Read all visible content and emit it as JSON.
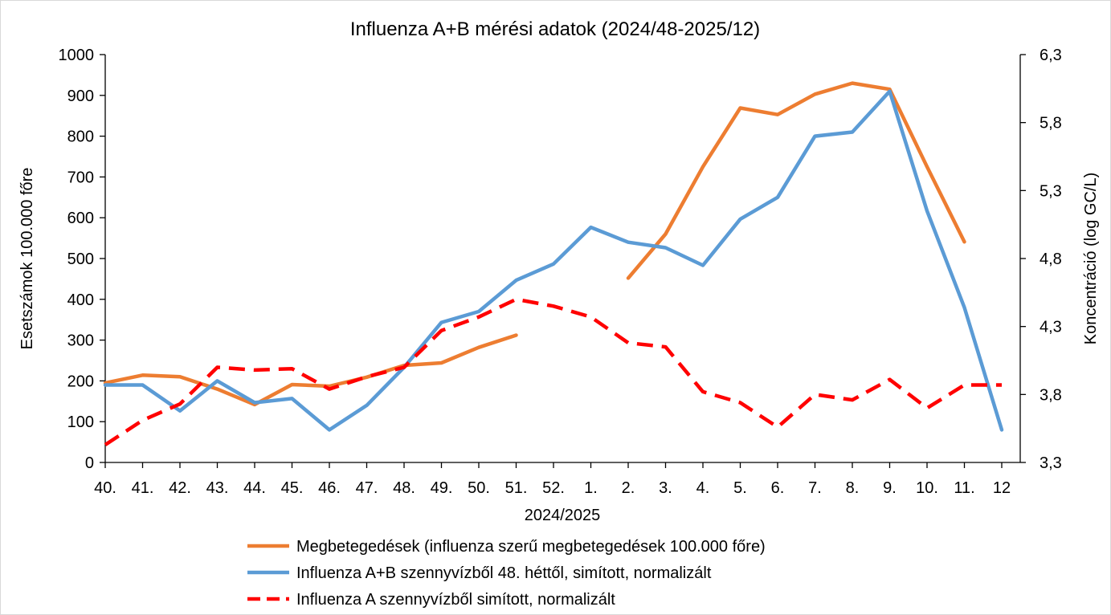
{
  "chart_data": {
    "type": "line",
    "title": "Influenza A+B mérési adatok (2024/48-2025/12)",
    "xlabel": "2024/2025",
    "ylabel": "Esetszámok 100.000 főre",
    "y2label": "Koncentráció (log GC/L)",
    "ylim": [
      0,
      1000
    ],
    "y2lim": [
      3.3,
      6.3
    ],
    "yticks": [
      "0",
      "100",
      "200",
      "300",
      "400",
      "500",
      "600",
      "700",
      "800",
      "900",
      "1000"
    ],
    "y2ticks": [
      "3,3",
      "3,8",
      "4,3",
      "4,8",
      "5,3",
      "5,8",
      "6,3"
    ],
    "categories": [
      "40.",
      "41.",
      "42.",
      "43.",
      "44.",
      "45.",
      "46.",
      "47.",
      "48.",
      "49.",
      "50.",
      "51.",
      "52.",
      "1.",
      "2.",
      "3.",
      "4.",
      "5.",
      "6.",
      "7.",
      "8.",
      "9.",
      "10.",
      "11.",
      "12"
    ],
    "grid": false,
    "legend_position": "bottom",
    "series": [
      {
        "name": "Megbetegedések (influenza szerű megbetegedések 100.000 főre)",
        "axis": "left",
        "color": "#ed7d31",
        "style": "solid",
        "values": [
          195,
          214,
          210,
          180,
          142,
          191,
          187,
          209,
          238,
          244,
          282,
          312,
          null,
          null,
          452,
          560,
          725,
          869,
          853,
          903,
          930,
          915,
          725,
          541,
          null
        ]
      },
      {
        "name": "Influenza A+B szennyvízből 48. héttől, simított, normalizált",
        "axis": "right",
        "color": "#5b9bd5",
        "style": "solid",
        "values": [
          3.87,
          3.87,
          3.68,
          3.9,
          3.74,
          3.77,
          3.54,
          3.72,
          4.0,
          4.33,
          4.41,
          4.64,
          4.76,
          5.03,
          4.92,
          4.88,
          4.75,
          5.09,
          5.25,
          5.7,
          5.73,
          6.03,
          5.15,
          4.44,
          3.54
        ]
      },
      {
        "name": "Influenza A szennyvízből simított, normalizált",
        "axis": "right",
        "color": "#ff0000",
        "style": "dashed",
        "values": [
          3.43,
          3.61,
          3.73,
          4.0,
          3.98,
          3.99,
          3.84,
          3.93,
          4.0,
          4.27,
          4.37,
          4.5,
          4.45,
          4.37,
          4.18,
          4.15,
          3.82,
          3.74,
          3.56,
          3.8,
          3.76,
          3.91,
          3.7,
          3.87,
          3.87
        ]
      }
    ]
  }
}
